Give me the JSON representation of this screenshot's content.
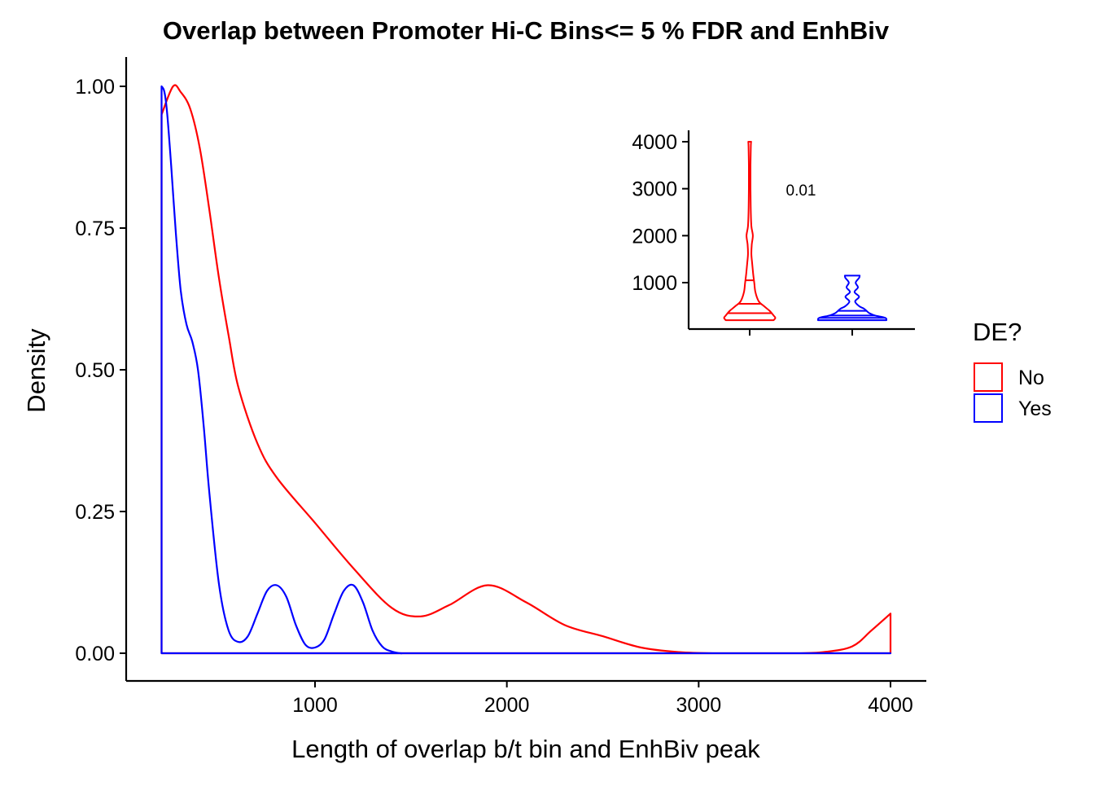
{
  "chart_data": [
    {
      "type": "area",
      "title": "Overlap between Promoter Hi-C Bins<= 5 % FDR and EnhBiv",
      "xlabel": "Length of overlap b/t bin and EnhBiv peak",
      "ylabel": "Density",
      "xlim": [
        0,
        4200
      ],
      "ylim": [
        -0.05,
        1.05
      ],
      "x_ticks": [
        "1000",
        "2000",
        "3000",
        "4000"
      ],
      "x_tick_values": [
        1000,
        2000,
        3000,
        4000
      ],
      "y_ticks": [
        "0.00",
        "0.25",
        "0.50",
        "0.75",
        "1.00"
      ],
      "y_tick_values": [
        0,
        0.25,
        0.5,
        0.75,
        1.0
      ],
      "grid": false,
      "legend_position": "right",
      "series": [
        {
          "name": "No",
          "color": "#FF0000",
          "x": [
            200,
            260,
            300,
            350,
            400,
            450,
            500,
            550,
            600,
            700,
            800,
            1000,
            1200,
            1400,
            1550,
            1700,
            1900,
            2100,
            2300,
            2500,
            2700,
            2900,
            3100,
            3300,
            3500,
            3650,
            3800,
            3900,
            4000
          ],
          "y": [
            0.95,
            1.0,
            0.99,
            0.96,
            0.89,
            0.78,
            0.66,
            0.56,
            0.47,
            0.37,
            0.31,
            0.23,
            0.15,
            0.08,
            0.065,
            0.085,
            0.12,
            0.09,
            0.05,
            0.03,
            0.01,
            0.002,
            0.0,
            0.0,
            0.0,
            0.002,
            0.012,
            0.04,
            0.07
          ]
        },
        {
          "name": "Yes",
          "color": "#0000FF",
          "x": [
            200,
            215,
            230,
            250,
            275,
            300,
            330,
            360,
            390,
            420,
            450,
            500,
            550,
            600,
            650,
            700,
            750,
            800,
            850,
            900,
            950,
            1000,
            1050,
            1100,
            1150,
            1200,
            1250,
            1300,
            1350,
            1400,
            1450,
            1500,
            2000,
            3000,
            4000
          ],
          "y": [
            1.0,
            0.99,
            0.95,
            0.86,
            0.74,
            0.64,
            0.58,
            0.55,
            0.5,
            0.4,
            0.28,
            0.12,
            0.04,
            0.02,
            0.03,
            0.07,
            0.11,
            0.12,
            0.1,
            0.05,
            0.015,
            0.01,
            0.025,
            0.07,
            0.11,
            0.12,
            0.09,
            0.04,
            0.012,
            0.003,
            0.0,
            0.0,
            0.0,
            0.0,
            0.0
          ]
        }
      ]
    },
    {
      "type": "violin",
      "inset": true,
      "categories": [
        "No",
        "Yes"
      ],
      "ylim": [
        0,
        4200
      ],
      "y_ticks": [
        "1000",
        "2000",
        "3000",
        "4000"
      ],
      "y_tick_values": [
        1000,
        2000,
        3000,
        4000
      ],
      "annotation": "0.01",
      "series": [
        {
          "name": "No",
          "color": "#FF0000",
          "profile_y": [
            200,
            250,
            300,
            400,
            500,
            600,
            800,
            1000,
            1200,
            1400,
            1600,
            1800,
            2000,
            2200,
            2500,
            3000,
            3500,
            3900,
            4000
          ],
          "profile_halfwidth": [
            0.42,
            0.45,
            0.42,
            0.35,
            0.25,
            0.16,
            0.1,
            0.08,
            0.06,
            0.045,
            0.03,
            0.035,
            0.055,
            0.03,
            0.02,
            0.015,
            0.015,
            0.02,
            0.025
          ],
          "quantiles": [
            350,
            550,
            1050
          ]
        },
        {
          "name": "Yes",
          "color": "#0000FF",
          "profile_y": [
            200,
            250,
            300,
            350,
            400,
            450,
            500,
            600,
            700,
            800,
            900,
            1000,
            1100,
            1150
          ],
          "profile_halfwidth": [
            0.6,
            0.58,
            0.4,
            0.3,
            0.25,
            0.2,
            0.12,
            0.05,
            0.12,
            0.04,
            0.1,
            0.06,
            0.12,
            0.13
          ],
          "quantiles": [
            250,
            300,
            400
          ]
        }
      ]
    }
  ]
}
